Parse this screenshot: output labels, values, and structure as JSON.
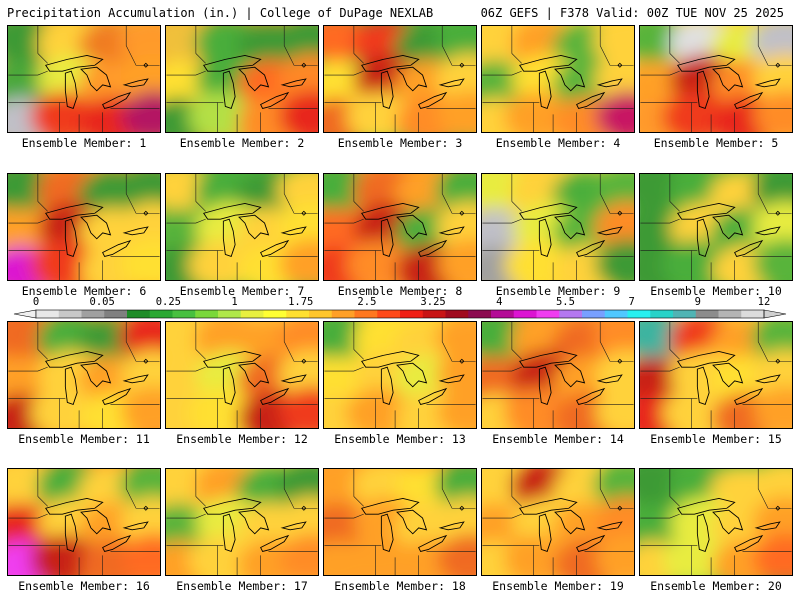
{
  "header": {
    "title_left": "Precipitation Accumulation (in.) | College of DuPage NEXLAB",
    "title_right": "06Z GEFS | F378 Valid: 00Z TUE NOV 25 2025"
  },
  "caption_prefix": "Ensemble Member:",
  "colorbar": {
    "labels": [
      "0",
      "0.05",
      "0.25",
      "1",
      "1.75",
      "2.5",
      "3.25",
      "4",
      "5.5",
      "7",
      "9",
      "12"
    ],
    "colors": [
      "#e8e8e8",
      "#c8c8c8",
      "#a0a0a0",
      "#808080",
      "#1e8c28",
      "#2aa832",
      "#48c040",
      "#7ad83a",
      "#b0e84a",
      "#e8f040",
      "#ffff33",
      "#ffe030",
      "#ffc62c",
      "#ffa028",
      "#ff7820",
      "#ff4a18",
      "#f01e14",
      "#c81414",
      "#a00a1e",
      "#8c0a50",
      "#b40a96",
      "#dc14d2",
      "#f03cf0",
      "#b478f0",
      "#78a0ff",
      "#50c8ff",
      "#28f0f0",
      "#28d2c8",
      "#50b4b4",
      "#8c8c8c",
      "#b4b4b4",
      "#dcdcdc"
    ]
  },
  "members": [
    {
      "label": "1",
      "base": "#f0b43a",
      "cells": [
        "#3c9a34",
        "#ffd23a",
        "#f07a22",
        "#ff9a2a",
        "#48a83a",
        "#e8ec40",
        "#ff9a2a",
        "#ffa028",
        "#c0c0c8",
        "#f03a1e",
        "#e8281a",
        "#b41464"
      ]
    },
    {
      "label": "2",
      "base": "#ffa028",
      "cells": [
        "#f0c03a",
        "#4aae3a",
        "#3c9a34",
        "#3c9a34",
        "#ffe030",
        "#4aae3a",
        "#ff6a20",
        "#ff8828",
        "#3c9a34",
        "#b4e044",
        "#ff8c28",
        "#e8281a"
      ]
    },
    {
      "label": "3",
      "base": "#58b43a",
      "cells": [
        "#ff6a20",
        "#f03a1e",
        "#3c9a34",
        "#4aae3a",
        "#ffe030",
        "#c82018",
        "#ffa028",
        "#ffd23a",
        "#f06a22",
        "#ffd23a",
        "#ff8c28",
        "#ffa028"
      ]
    },
    {
      "label": "4",
      "base": "#ffd23a",
      "cells": [
        "#ffd23a",
        "#ffa028",
        "#58b43a",
        "#ffd23a",
        "#58b43a",
        "#ffe030",
        "#58b43a",
        "#ffd23a",
        "#ffd23a",
        "#ffa028",
        "#ff8c28",
        "#c81464"
      ]
    },
    {
      "label": "5",
      "base": "#ffd23a",
      "cells": [
        "#58b43a",
        "#e0e0e0",
        "#e8ec40",
        "#c0c0c8",
        "#ffa028",
        "#c82018",
        "#ff8c28",
        "#ffd23a",
        "#ff9a2a",
        "#f03a1e",
        "#e8281a",
        "#ff8c28"
      ]
    },
    {
      "label": "6",
      "base": "#ffa028",
      "cells": [
        "#3c9a34",
        "#f06a22",
        "#3c9a34",
        "#3c9a34",
        "#ffa028",
        "#c82018",
        "#ffd23a",
        "#ffd23a",
        "#dc14d2",
        "#f03a1e",
        "#ffd23a",
        "#ffe030"
      ]
    },
    {
      "label": "7",
      "base": "#58b43a",
      "cells": [
        "#ffd23a",
        "#4aae3a",
        "#3c9a34",
        "#ffd23a",
        "#58b43a",
        "#e8ec40",
        "#ffd23a",
        "#ffe030",
        "#3c9a34",
        "#ffd23a",
        "#ffe030",
        "#ffa028"
      ]
    },
    {
      "label": "8",
      "base": "#ffa028",
      "cells": [
        "#4aae3a",
        "#f06a22",
        "#ffa028",
        "#4aae3a",
        "#ff6a20",
        "#c82018",
        "#4aae3a",
        "#ffd23a",
        "#f03a1e",
        "#ff8c28",
        "#c82018",
        "#ffa028"
      ]
    },
    {
      "label": "9",
      "base": "#ffd23a",
      "cells": [
        "#e8ec40",
        "#ffd23a",
        "#4aae3a",
        "#58b43a",
        "#c0c0c8",
        "#e8ec40",
        "#58b43a",
        "#ff8c28",
        "#a0a0a0",
        "#ffe030",
        "#ffd23a",
        "#3c9a34"
      ]
    },
    {
      "label": "10",
      "base": "#58b43a",
      "cells": [
        "#3c9a34",
        "#4aae3a",
        "#ffd23a",
        "#3c9a34",
        "#3c9a34",
        "#ffd23a",
        "#4aae3a",
        "#e8ec40",
        "#3c9a34",
        "#4aae3a",
        "#ffd23a",
        "#58b43a"
      ]
    },
    {
      "label": "11",
      "base": "#ffa028",
      "cells": [
        "#f06a22",
        "#4aae3a",
        "#3c9a34",
        "#e8281a",
        "#ffa028",
        "#ffd23a",
        "#ffa028",
        "#ffd23a",
        "#c82018",
        "#ffd23a",
        "#ffe030",
        "#ffa028"
      ]
    },
    {
      "label": "12",
      "base": "#ffd23a",
      "cells": [
        "#ffd23a",
        "#ffa028",
        "#ffa028",
        "#ff8c28",
        "#ffd23a",
        "#e8ec40",
        "#f06a22",
        "#ffd23a",
        "#ffd23a",
        "#ffe030",
        "#c82018",
        "#f03a1e"
      ]
    },
    {
      "label": "13",
      "base": "#ffe030",
      "cells": [
        "#4aae3a",
        "#ffe030",
        "#ffd23a",
        "#ffa028",
        "#ffe030",
        "#ffd23a",
        "#e8ec40",
        "#ffa028",
        "#ffd23a",
        "#ffa028",
        "#ffd23a",
        "#ffa028"
      ]
    },
    {
      "label": "14",
      "base": "#ffa028",
      "cells": [
        "#4aae3a",
        "#ffa028",
        "#f06a22",
        "#ff8c28",
        "#f06a22",
        "#c82018",
        "#ffa028",
        "#ffd23a",
        "#ffd23a",
        "#ff8c28",
        "#f06a22",
        "#ffd23a"
      ]
    },
    {
      "label": "15",
      "base": "#ffd23a",
      "cells": [
        "#3cb4a0",
        "#f03a1e",
        "#ffa028",
        "#58b43a",
        "#c82018",
        "#ffd23a",
        "#ffe030",
        "#ffd23a",
        "#e8281a",
        "#ffd23a",
        "#f06a22",
        "#ffa028"
      ]
    },
    {
      "label": "16",
      "base": "#ffa028",
      "cells": [
        "#ffd23a",
        "#4aae3a",
        "#ffd23a",
        "#58b43a",
        "#e8281a",
        "#ffd23a",
        "#ffa028",
        "#ffd23a",
        "#f03cf0",
        "#c82018",
        "#f06a22",
        "#ff6a20"
      ]
    },
    {
      "label": "17",
      "base": "#ffd23a",
      "cells": [
        "#ffd23a",
        "#ffa028",
        "#4aae3a",
        "#3c9a34",
        "#58b43a",
        "#e8ec40",
        "#ffd23a",
        "#ffd23a",
        "#ffa028",
        "#ffd23a",
        "#ffa028",
        "#ff8c28"
      ]
    },
    {
      "label": "18",
      "base": "#ffa028",
      "cells": [
        "#ffa028",
        "#ffd23a",
        "#ffe030",
        "#4aae3a",
        "#f06a22",
        "#ffa028",
        "#ffd23a",
        "#ffd23a",
        "#ffa028",
        "#ffa028",
        "#ffa028",
        "#f06a22"
      ]
    },
    {
      "label": "19",
      "base": "#ffd23a",
      "cells": [
        "#ffd23a",
        "#c82018",
        "#ffd23a",
        "#58b43a",
        "#ffa028",
        "#ffd23a",
        "#ffa028",
        "#ff8c28",
        "#ffd23a",
        "#ffa028",
        "#f06a22",
        "#ffa028"
      ]
    },
    {
      "label": "20",
      "base": "#58b43a",
      "cells": [
        "#3c9a34",
        "#4aae3a",
        "#ffd23a",
        "#ffd23a",
        "#4aae3a",
        "#e8ec40",
        "#ffd23a",
        "#ffa028",
        "#ffd23a",
        "#e8ec40",
        "#ffa028",
        "#ff6a20"
      ]
    }
  ]
}
